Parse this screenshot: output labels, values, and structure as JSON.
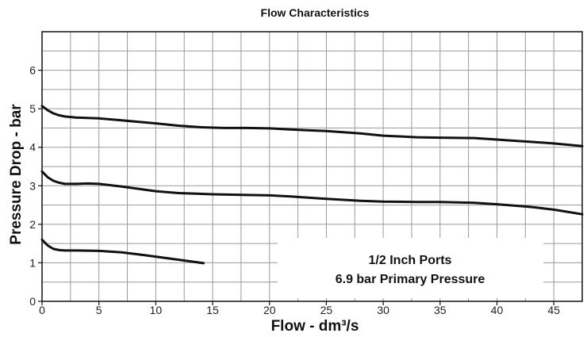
{
  "chart_data": {
    "type": "line",
    "title": "Flow Characteristics",
    "xlabel": "Flow - dm³/s",
    "ylabel": "Pressure Drop - bar",
    "xlim": [
      0,
      47.5
    ],
    "ylim": [
      0,
      7
    ],
    "xticks": [
      0,
      5,
      10,
      15,
      20,
      25,
      30,
      35,
      40,
      45
    ],
    "yticks": [
      0,
      1,
      2,
      3,
      4,
      5,
      6
    ],
    "grid": true,
    "annotation": [
      "1/2 Inch Ports",
      "6.9 bar Primary Pressure"
    ],
    "series": [
      {
        "x": [
          0,
          0.5,
          1,
          1.5,
          2,
          3,
          4,
          5,
          7,
          10,
          12,
          14,
          16,
          18,
          20,
          22,
          25,
          28,
          30,
          33,
          35,
          38,
          40,
          43,
          45,
          47.5
        ],
        "y": [
          5.07,
          4.96,
          4.88,
          4.83,
          4.8,
          4.77,
          4.76,
          4.75,
          4.7,
          4.62,
          4.56,
          4.52,
          4.5,
          4.5,
          4.49,
          4.46,
          4.42,
          4.36,
          4.3,
          4.26,
          4.25,
          4.24,
          4.2,
          4.14,
          4.1,
          4.03
        ]
      },
      {
        "x": [
          0,
          0.5,
          1,
          1.5,
          2,
          3,
          4,
          5,
          7,
          10,
          12,
          15,
          18,
          20,
          22,
          25,
          28,
          30,
          33,
          35,
          38,
          40,
          43,
          45,
          47.5
        ],
        "y": [
          3.37,
          3.22,
          3.13,
          3.08,
          3.05,
          3.05,
          3.06,
          3.05,
          2.98,
          2.86,
          2.81,
          2.78,
          2.76,
          2.75,
          2.72,
          2.66,
          2.61,
          2.59,
          2.58,
          2.58,
          2.56,
          2.52,
          2.45,
          2.38,
          2.26
        ]
      },
      {
        "x": [
          0,
          0.5,
          1,
          1.5,
          2,
          3,
          5,
          7,
          9,
          11,
          13,
          14.2
        ],
        "y": [
          1.6,
          1.45,
          1.36,
          1.33,
          1.32,
          1.32,
          1.31,
          1.27,
          1.2,
          1.12,
          1.04,
          0.99
        ]
      }
    ]
  }
}
